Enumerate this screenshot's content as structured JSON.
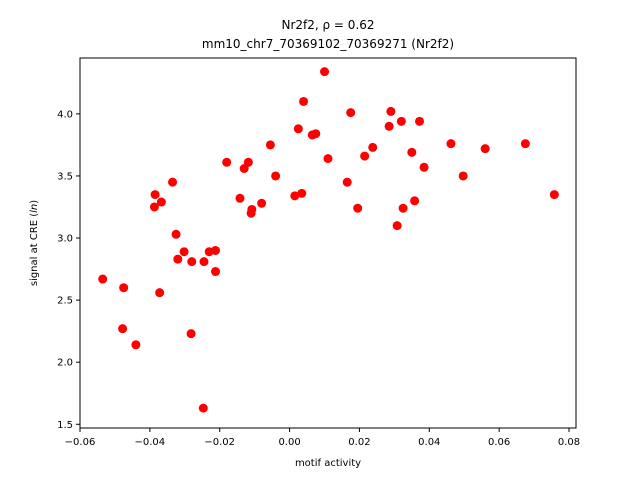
{
  "chart_data": {
    "type": "scatter",
    "title_line1": "Nr2f2, ρ = 0.62",
    "title_line2": "mm10_chr7_70369102_70369271 (Nr2f2)",
    "xlabel": "motif activity",
    "ylabel_prefix": "signal at CRE (",
    "ylabel_italic": "ln",
    "ylabel_suffix": ")",
    "xlim": [
      -0.06,
      0.082
    ],
    "ylim": [
      1.47,
      4.45
    ],
    "xticks": [
      -0.06,
      -0.04,
      -0.02,
      0.0,
      0.02,
      0.04,
      0.06,
      0.08
    ],
    "xtick_labels": [
      "−0.06",
      "−0.04",
      "−0.02",
      "0.00",
      "0.02",
      "0.04",
      "0.06",
      "0.08"
    ],
    "yticks": [
      1.5,
      2.0,
      2.5,
      3.0,
      3.5,
      4.0
    ],
    "ytick_labels": [
      "1.5",
      "2.0",
      "2.5",
      "3.0",
      "3.5",
      "4.0"
    ],
    "marker_color": "#ff0000",
    "points": [
      {
        "x": -0.0535,
        "y": 2.67
      },
      {
        "x": -0.0475,
        "y": 2.6
      },
      {
        "x": -0.0478,
        "y": 2.27
      },
      {
        "x": -0.044,
        "y": 2.14
      },
      {
        "x": -0.0385,
        "y": 3.35
      },
      {
        "x": -0.0387,
        "y": 3.25
      },
      {
        "x": -0.0367,
        "y": 3.29
      },
      {
        "x": -0.0372,
        "y": 2.56
      },
      {
        "x": -0.0335,
        "y": 3.45
      },
      {
        "x": -0.0325,
        "y": 3.03
      },
      {
        "x": -0.032,
        "y": 2.83
      },
      {
        "x": -0.0302,
        "y": 2.89
      },
      {
        "x": -0.0282,
        "y": 2.23
      },
      {
        "x": -0.028,
        "y": 2.81
      },
      {
        "x": -0.0247,
        "y": 1.63
      },
      {
        "x": -0.0245,
        "y": 2.81
      },
      {
        "x": -0.023,
        "y": 2.89
      },
      {
        "x": -0.0212,
        "y": 2.9
      },
      {
        "x": -0.0212,
        "y": 2.73
      },
      {
        "x": -0.018,
        "y": 3.61
      },
      {
        "x": -0.0142,
        "y": 3.32
      },
      {
        "x": -0.013,
        "y": 3.56
      },
      {
        "x": -0.0118,
        "y": 3.61
      },
      {
        "x": -0.011,
        "y": 3.2
      },
      {
        "x": -0.0108,
        "y": 3.23
      },
      {
        "x": -0.008,
        "y": 3.28
      },
      {
        "x": -0.0055,
        "y": 3.75
      },
      {
        "x": -0.004,
        "y": 3.5
      },
      {
        "x": 0.0015,
        "y": 3.34
      },
      {
        "x": 0.0025,
        "y": 3.88
      },
      {
        "x": 0.0035,
        "y": 3.36
      },
      {
        "x": 0.004,
        "y": 4.1
      },
      {
        "x": 0.0065,
        "y": 3.83
      },
      {
        "x": 0.0075,
        "y": 3.84
      },
      {
        "x": 0.01,
        "y": 4.34
      },
      {
        "x": 0.011,
        "y": 3.64
      },
      {
        "x": 0.0165,
        "y": 3.45
      },
      {
        "x": 0.0175,
        "y": 4.01
      },
      {
        "x": 0.0195,
        "y": 3.24
      },
      {
        "x": 0.0215,
        "y": 3.66
      },
      {
        "x": 0.0238,
        "y": 3.73
      },
      {
        "x": 0.0285,
        "y": 3.9
      },
      {
        "x": 0.029,
        "y": 4.02
      },
      {
        "x": 0.0308,
        "y": 3.1
      },
      {
        "x": 0.032,
        "y": 3.94
      },
      {
        "x": 0.0325,
        "y": 3.24
      },
      {
        "x": 0.035,
        "y": 3.69
      },
      {
        "x": 0.0358,
        "y": 3.3
      },
      {
        "x": 0.0372,
        "y": 3.94
      },
      {
        "x": 0.0385,
        "y": 3.57
      },
      {
        "x": 0.0462,
        "y": 3.76
      },
      {
        "x": 0.0497,
        "y": 3.5
      },
      {
        "x": 0.056,
        "y": 3.72
      },
      {
        "x": 0.0675,
        "y": 3.76
      },
      {
        "x": 0.0758,
        "y": 3.35
      }
    ]
  }
}
